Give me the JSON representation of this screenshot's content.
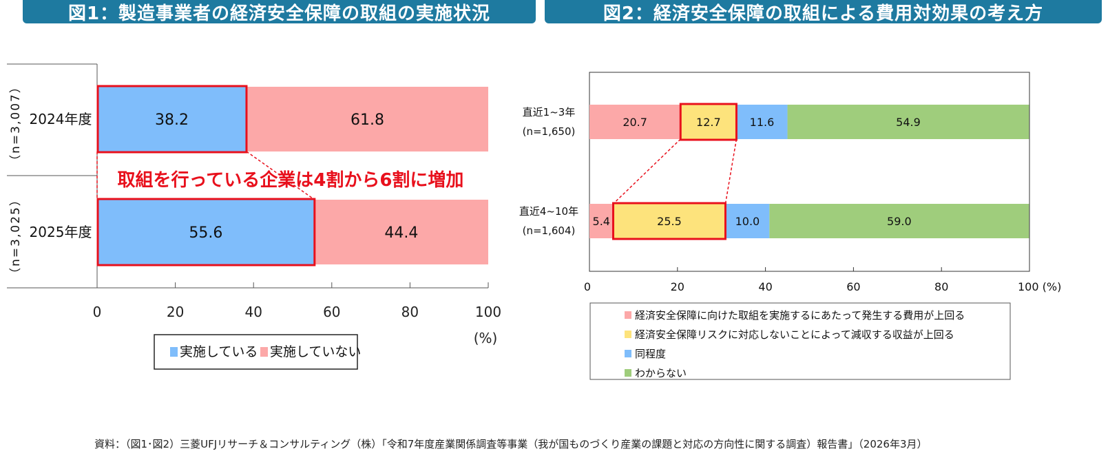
{
  "titles": {
    "fig1": "図1：製造事業者の経済安全保障の取組の実施状況",
    "fig2": "図2：経済安全保障の取組による費用対効果の考え方"
  },
  "source_note": "資料：（図1･図2）三菱UFJリサーチ＆コンサルティング（株）「令和7年度産業関係調査等事業（我が国ものづくり産業の課題と対応の方向性に関する調査）報告書」（2026年3月）",
  "chart_data": [
    {
      "type": "bar",
      "orientation": "horizontal",
      "stacked": true,
      "title": "図1：製造事業者の経済安全保障の取組の実施状況",
      "categories": [
        "2024年度",
        "2025年度"
      ],
      "sample_sizes": [
        "（n=3,007）",
        "（n=3,025）"
      ],
      "series": [
        {
          "name": "実施している",
          "values": [
            38.2,
            55.6
          ],
          "color": "#7fbdfb"
        },
        {
          "name": "実施していない",
          "values": [
            61.8,
            44.4
          ],
          "color": "#fca8a8"
        }
      ],
      "xlim": [
        0,
        100
      ],
      "xticks": [
        "0",
        "20",
        "40",
        "60",
        "80",
        "100"
      ],
      "xlabel": "(%)",
      "annotation": "取組を行っている企業は4割から6割に増加",
      "highlight_series": "実施している",
      "highlight_color": "#e8101c",
      "legend": "bottom"
    },
    {
      "type": "bar",
      "orientation": "horizontal",
      "stacked": true,
      "title": "図2：経済安全保障の取組による費用対効果の考え方",
      "categories": [
        {
          "line1": "直近1~3年",
          "line2": "(n=1,650)"
        },
        {
          "line1": "直近4~10年",
          "line2": "(n=1,604)"
        }
      ],
      "series": [
        {
          "name": "経済安全保障に向けた取組を実施するにあたって発生する費用が上回る",
          "values": [
            20.7,
            5.4
          ],
          "color": "#fca8a8"
        },
        {
          "name": "経済安全保障リスクに対応しないことによって減収する収益が上回る",
          "values": [
            12.7,
            25.5
          ],
          "color": "#fde37c"
        },
        {
          "name": "同程度",
          "values": [
            11.6,
            10.0
          ],
          "color": "#7fbdfb"
        },
        {
          "name": "わからない",
          "values": [
            54.9,
            59.0
          ],
          "color": "#9fcd7c"
        }
      ],
      "xlim": [
        0,
        100
      ],
      "xticks": [
        "0",
        "20",
        "40",
        "60",
        "80",
        "100 (%)"
      ],
      "highlight_series_index": 1,
      "highlight_color": "#e8101c",
      "legend": "bottom"
    }
  ]
}
